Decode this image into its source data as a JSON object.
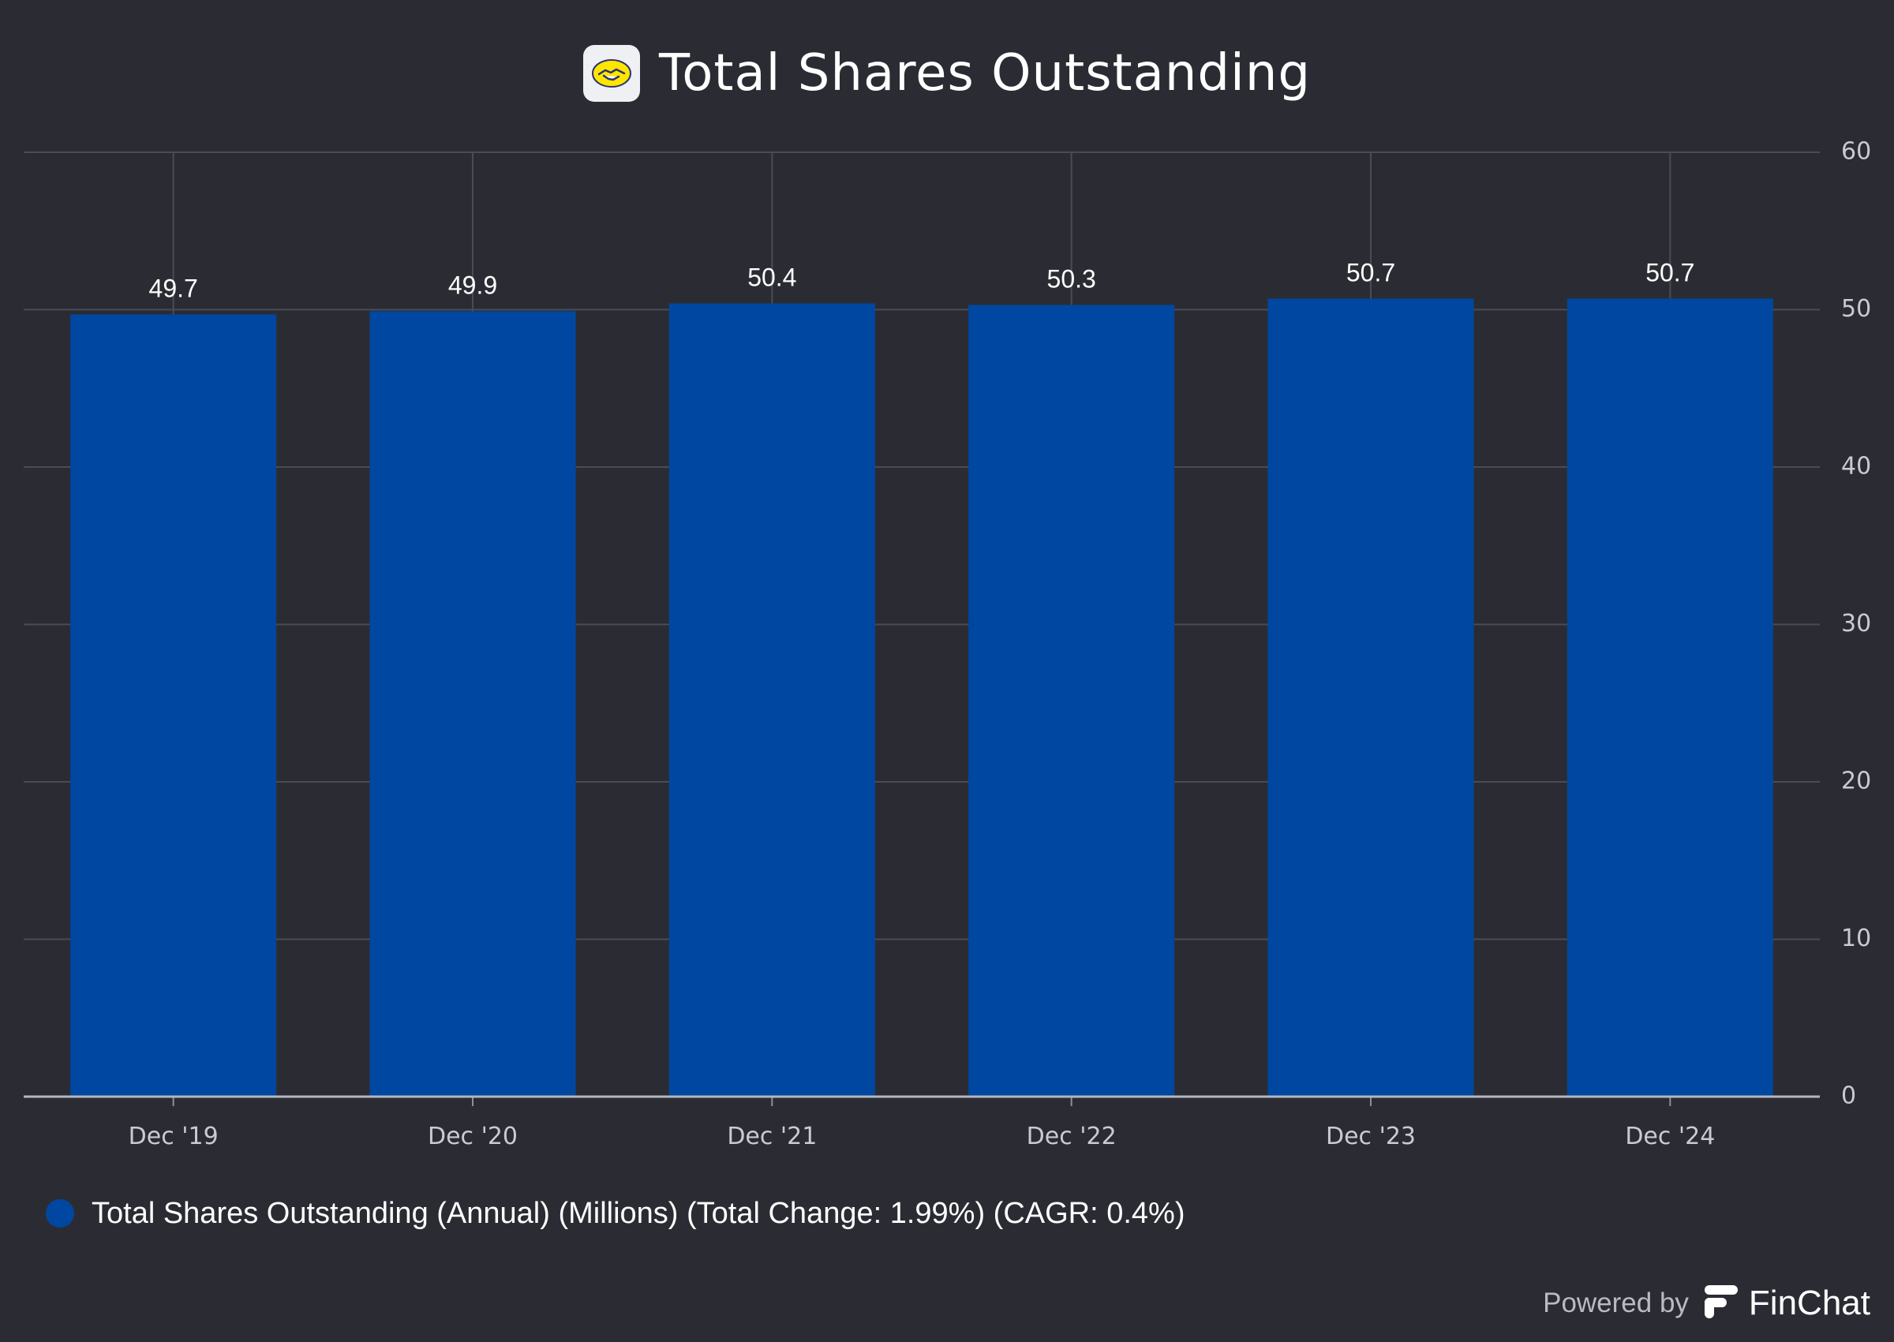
{
  "header": {
    "title": "Total Shares Outstanding",
    "logo_icon": "handshake-logo-icon"
  },
  "chart_data": {
    "type": "bar",
    "title": "Total Shares Outstanding",
    "categories": [
      "Dec '19",
      "Dec '20",
      "Dec '21",
      "Dec '22",
      "Dec '23",
      "Dec '24"
    ],
    "values": [
      49.7,
      49.9,
      50.4,
      50.3,
      50.7,
      50.7
    ],
    "value_labels": [
      "49.7",
      "49.9",
      "50.4",
      "50.3",
      "50.7",
      "50.7"
    ],
    "y_ticks": [
      0,
      10,
      20,
      30,
      40,
      50,
      60
    ],
    "ylim": [
      0,
      60
    ],
    "y_axis_side": "right",
    "grid": true,
    "bar_color": "#0047a1",
    "series": [
      {
        "name": "Total Shares Outstanding (Annual) (Millions) (Total Change: 1.99%) (CAGR: 0.4%)"
      }
    ],
    "legend_position": "bottom-left"
  },
  "legend": {
    "label": "Total Shares Outstanding (Annual) (Millions) (Total Change: 1.99%) (CAGR: 0.4%)",
    "color": "#0047a1"
  },
  "footer": {
    "powered_by": "Powered by",
    "brand": "FinChat",
    "brand_icon": "finchat-logo-icon"
  }
}
